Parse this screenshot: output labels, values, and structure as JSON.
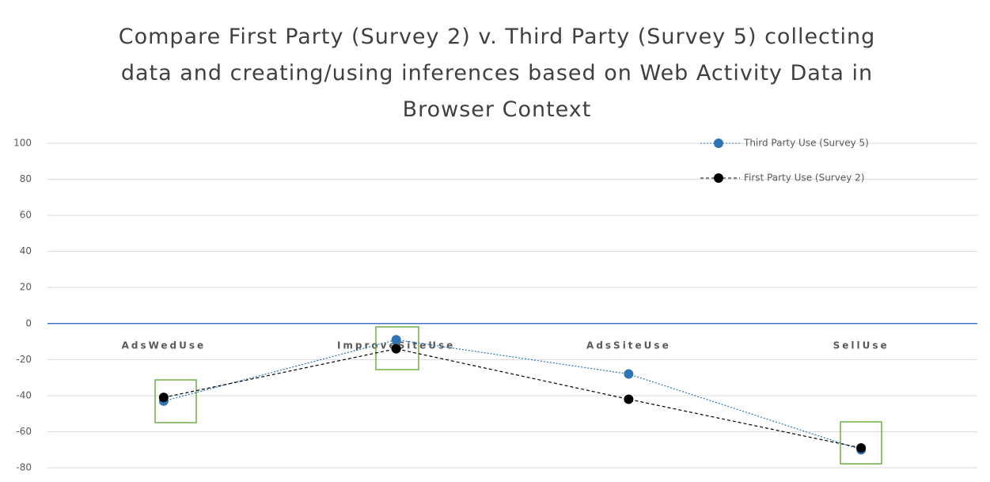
{
  "chart_data": {
    "type": "line",
    "title": "Compare First Party (Survey 2) v. Third Party (Survey 5) collecting data and creating/using inferences based on Web Activity Data in Browser Context",
    "categories": [
      "AdsWedUse",
      "ImproveSiteUse",
      "AdsSiteUse",
      "SellUse"
    ],
    "series": [
      {
        "name": "Third Party Use (Survey 5)",
        "color": "#2e75b6",
        "values": [
          -43,
          -9,
          -28,
          -70
        ]
      },
      {
        "name": "First Party Use (Survey 2)",
        "color": "#000000",
        "values": [
          -41,
          -14,
          -42,
          -69
        ]
      }
    ],
    "ylim": [
      -80,
      100
    ],
    "yticks": [
      -80,
      -60,
      -40,
      -20,
      0,
      20,
      40,
      60,
      80,
      100
    ],
    "grid": true,
    "legend": "top-right"
  }
}
